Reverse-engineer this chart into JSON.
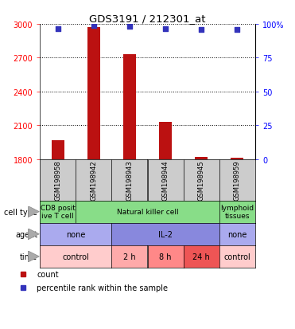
{
  "title": "GDS3191 / 212301_at",
  "samples": [
    "GSM198958",
    "GSM198942",
    "GSM198943",
    "GSM198944",
    "GSM198945",
    "GSM198959"
  ],
  "counts": [
    1970,
    2970,
    2730,
    2130,
    1820,
    1812
  ],
  "percentile_ranks": [
    96.5,
    99,
    98,
    96.5,
    96,
    96
  ],
  "ylim_left": [
    1800,
    3000
  ],
  "ylim_right": [
    0,
    100
  ],
  "yticks_left": [
    1800,
    2100,
    2400,
    2700,
    3000
  ],
  "yticks_right": [
    0,
    25,
    50,
    75,
    100
  ],
  "ytick_right_labels": [
    "0",
    "25",
    "50",
    "75",
    "100%"
  ],
  "bar_color": "#bb1111",
  "dot_color": "#3333bb",
  "bar_width": 0.35,
  "cell_type_labels": [
    {
      "text": "CD8 posit\nive T cell",
      "col_span": [
        0,
        1
      ],
      "color": "#88dd88"
    },
    {
      "text": "Natural killer cell",
      "col_span": [
        1,
        5
      ],
      "color": "#88dd88"
    },
    {
      "text": "lymphoid\ntissues",
      "col_span": [
        5,
        6
      ],
      "color": "#88dd88"
    }
  ],
  "agent_labels": [
    {
      "text": "none",
      "col_span": [
        0,
        2
      ],
      "color": "#aaaaee"
    },
    {
      "text": "IL-2",
      "col_span": [
        2,
        5
      ],
      "color": "#8888dd"
    },
    {
      "text": "none",
      "col_span": [
        5,
        6
      ],
      "color": "#aaaaee"
    }
  ],
  "time_labels": [
    {
      "text": "control",
      "col_span": [
        0,
        2
      ],
      "color": "#ffcccc"
    },
    {
      "text": "2 h",
      "col_span": [
        2,
        3
      ],
      "color": "#ffaaaa"
    },
    {
      "text": "8 h",
      "col_span": [
        3,
        4
      ],
      "color": "#ff8888"
    },
    {
      "text": "24 h",
      "col_span": [
        4,
        5
      ],
      "color": "#ee5555"
    },
    {
      "text": "control",
      "col_span": [
        5,
        6
      ],
      "color": "#ffcccc"
    }
  ],
  "sample_bg": "#cccccc",
  "plot_bg": "#ffffff",
  "fig_bg": "#ffffff"
}
